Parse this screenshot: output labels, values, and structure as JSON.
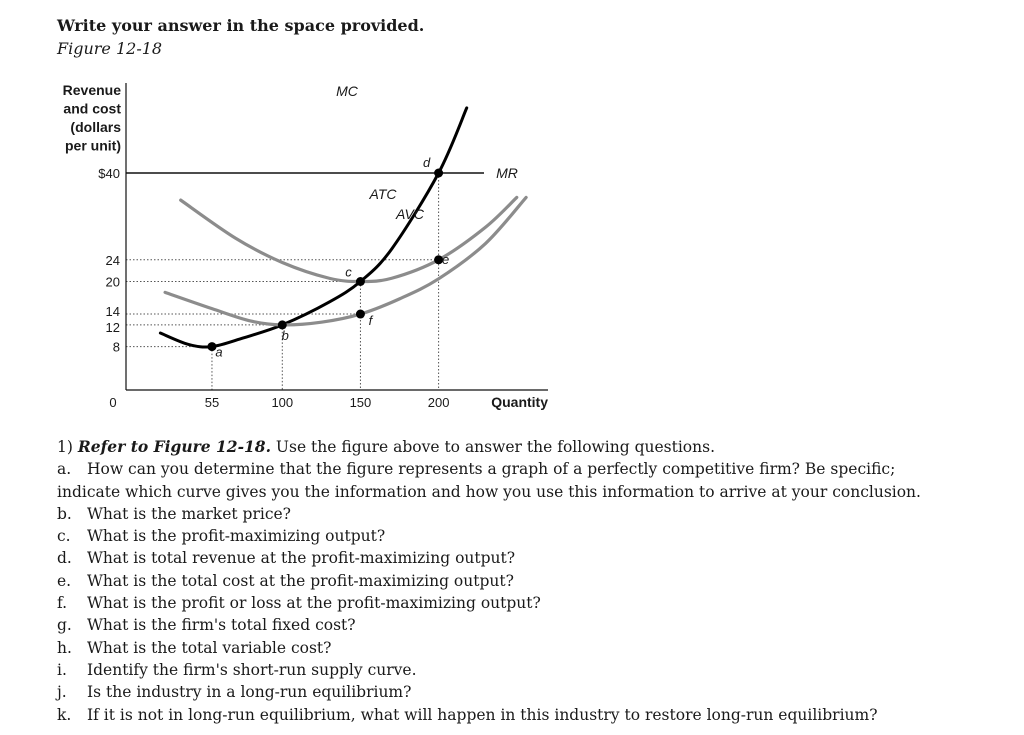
{
  "header": {
    "instruction": "Write your answer in the space provided.",
    "figure_label": "Figure 12-18"
  },
  "chart_data": {
    "type": "line",
    "ylabel_lines": [
      "Revenue",
      "and cost",
      "(dollars",
      "per unit)"
    ],
    "xlabel": "Quantity",
    "y_ticks": [
      {
        "value": 40,
        "label": "$40"
      },
      {
        "value": 24,
        "label": "24"
      },
      {
        "value": 20,
        "label": "20"
      },
      {
        "value": 14,
        "label": "14"
      },
      {
        "value": 12,
        "label": "12"
      },
      {
        "value": 8,
        "label": "8"
      }
    ],
    "x_ticks": [
      {
        "value": 0,
        "label": "0"
      },
      {
        "value": 55,
        "label": "55"
      },
      {
        "value": 100,
        "label": "100"
      },
      {
        "value": 150,
        "label": "150"
      },
      {
        "value": 200,
        "label": "200"
      }
    ],
    "xlim": [
      0,
      270
    ],
    "ylim": [
      0,
      48
    ],
    "series": [
      {
        "name": "MR",
        "color": "#111111",
        "points": [
          [
            0,
            40
          ],
          [
            270,
            40
          ]
        ]
      },
      {
        "name": "MC",
        "color": "#000000",
        "points": [
          [
            22,
            10.5
          ],
          [
            40,
            8.4
          ],
          [
            55,
            8
          ],
          [
            75,
            9.6
          ],
          [
            100,
            12
          ],
          [
            130,
            16.2
          ],
          [
            150,
            20
          ],
          [
            170,
            26
          ],
          [
            200,
            40
          ],
          [
            218,
            52
          ]
        ]
      },
      {
        "name": "ATC",
        "color": "#8c8c8c",
        "points": [
          [
            35,
            35
          ],
          [
            70,
            28
          ],
          [
            100,
            23.5
          ],
          [
            130,
            20.6
          ],
          [
            150,
            20
          ],
          [
            170,
            20.6
          ],
          [
            200,
            24
          ],
          [
            230,
            30
          ],
          [
            250,
            35.5
          ]
        ]
      },
      {
        "name": "AVC",
        "color": "#8c8c8c",
        "points": [
          [
            25,
            18
          ],
          [
            55,
            15
          ],
          [
            80,
            12.7
          ],
          [
            100,
            12
          ],
          [
            125,
            12.5
          ],
          [
            150,
            14
          ],
          [
            175,
            16.8
          ],
          [
            200,
            20.5
          ],
          [
            230,
            27
          ],
          [
            256,
            35.5
          ]
        ]
      }
    ],
    "points": [
      {
        "label": "a",
        "x": 55,
        "y": 8
      },
      {
        "label": "b",
        "x": 100,
        "y": 12
      },
      {
        "label": "c",
        "x": 150,
        "y": 20
      },
      {
        "label": "d",
        "x": 200,
        "y": 40
      },
      {
        "label": "e",
        "x": 200,
        "y": 24
      },
      {
        "label": "f",
        "x": 150,
        "y": 14
      }
    ]
  },
  "question": {
    "number": "1)",
    "ref": "Refer to Figure 12-18.",
    "intro": "Use the figure above to answer the following questions.",
    "parts": [
      {
        "letter": "a.",
        "text": "How can you determine that the figure represents a graph of a perfectly competitive firm? Be specific; indicate which curve gives you the information and how you use this information to arrive at your conclusion."
      },
      {
        "letter": "b.",
        "text": "What is the market price?"
      },
      {
        "letter": "c.",
        "text": "What is the profit-maximizing output?"
      },
      {
        "letter": "d.",
        "text": "What is total revenue at the profit-maximizing output?"
      },
      {
        "letter": "e.",
        "text": "What is the total cost at the profit-maximizing output?"
      },
      {
        "letter": "f.",
        "text": "What is the profit or loss at the profit-maximizing output?"
      },
      {
        "letter": "g.",
        "text": "What is the firm's total fixed cost?"
      },
      {
        "letter": "h.",
        "text": "What is the total variable cost?"
      },
      {
        "letter": "i.",
        "text": "Identify the firm's short-run supply curve."
      },
      {
        "letter": "j.",
        "text": "Is the industry in a long-run equilibrium?"
      },
      {
        "letter": "k.",
        "text": "If it is not in long-run equilibrium, what will happen in this industry to restore long-run equilibrium?"
      }
    ]
  }
}
